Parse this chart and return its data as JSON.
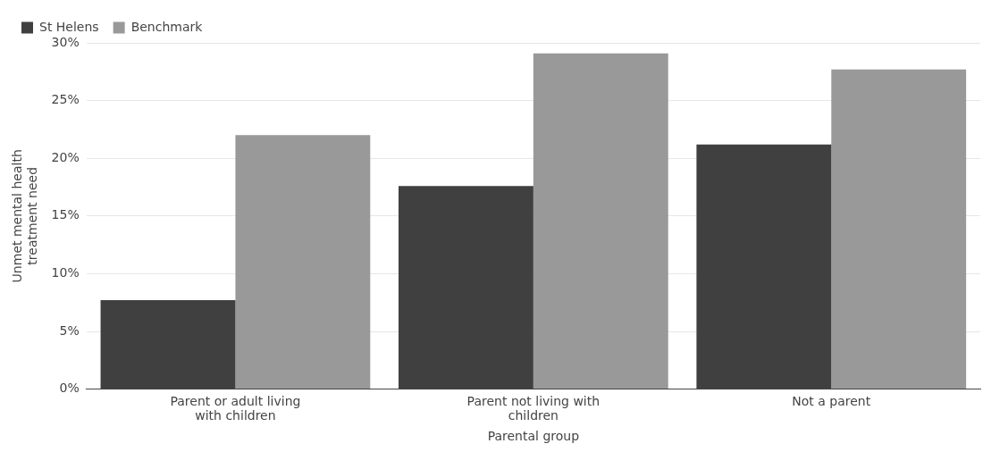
{
  "chart_data": {
    "type": "bar",
    "xlabel": "Parental group",
    "ylabel": "Unmet mental health treatment need",
    "categories": [
      "Parent or adult living with children",
      "Parent not living with children",
      "Not a parent"
    ],
    "series": [
      {
        "name": "St Helens",
        "color": "#404040",
        "values": [
          7.7,
          17.6,
          21.2
        ]
      },
      {
        "name": "Benchmark",
        "color": "#999999",
        "values": [
          22.0,
          29.1,
          27.7
        ]
      }
    ],
    "ylim": [
      0,
      30
    ],
    "yticks": [
      {
        "value": 0,
        "label": "0%"
      },
      {
        "value": 5,
        "label": "5%"
      },
      {
        "value": 10,
        "label": "10%"
      },
      {
        "value": 15,
        "label": "15%"
      },
      {
        "value": 20,
        "label": "20%"
      },
      {
        "value": 25,
        "label": "25%"
      },
      {
        "value": 30,
        "label": "30%"
      }
    ],
    "grid": "y",
    "legend": "top"
  }
}
